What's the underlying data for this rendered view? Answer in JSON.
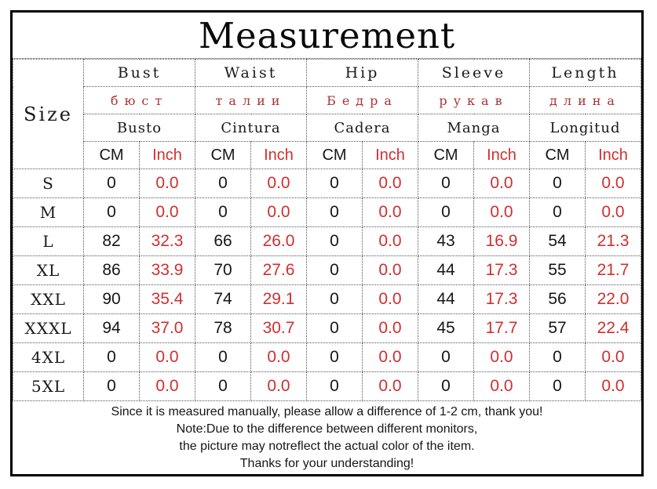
{
  "title": "Measurement",
  "table": {
    "size_header": "Size",
    "units": {
      "cm": "CM",
      "inch": "Inch"
    },
    "columns": [
      {
        "en": "Bust",
        "ru": "бюст",
        "es": "Busto"
      },
      {
        "en": "Waist",
        "ru": "талии",
        "es": "Cintura"
      },
      {
        "en": "Hip",
        "ru": "Бедра",
        "es": "Cadera"
      },
      {
        "en": "Sleeve",
        "ru": "рукав",
        "es": "Manga"
      },
      {
        "en": "Length",
        "ru": "длина",
        "es": "Longitud"
      }
    ],
    "rows": [
      {
        "size": "S",
        "values": [
          "0",
          "0.0",
          "0",
          "0.0",
          "0",
          "0.0",
          "0",
          "0.0",
          "0",
          "0.0"
        ]
      },
      {
        "size": "M",
        "values": [
          "0",
          "0.0",
          "0",
          "0.0",
          "0",
          "0.0",
          "0",
          "0.0",
          "0",
          "0.0"
        ]
      },
      {
        "size": "L",
        "values": [
          "82",
          "32.3",
          "66",
          "26.0",
          "0",
          "0.0",
          "43",
          "16.9",
          "54",
          "21.3"
        ]
      },
      {
        "size": "XL",
        "values": [
          "86",
          "33.9",
          "70",
          "27.6",
          "0",
          "0.0",
          "44",
          "17.3",
          "55",
          "21.7"
        ]
      },
      {
        "size": "XXL",
        "values": [
          "90",
          "35.4",
          "74",
          "29.1",
          "0",
          "0.0",
          "44",
          "17.3",
          "56",
          "22.0"
        ]
      },
      {
        "size": "XXXL",
        "values": [
          "94",
          "37.0",
          "78",
          "30.7",
          "0",
          "0.0",
          "45",
          "17.7",
          "57",
          "22.4"
        ]
      },
      {
        "size": "4XL",
        "values": [
          "0",
          "0.0",
          "0",
          "0.0",
          "0",
          "0.0",
          "0",
          "0.0",
          "0",
          "0.0"
        ]
      },
      {
        "size": "5XL",
        "values": [
          "0",
          "0.0",
          "0",
          "0.0",
          "0",
          "0.0",
          "0",
          "0.0",
          "0",
          "0.0"
        ]
      }
    ]
  },
  "notes": [
    "Since it is measured manually, please allow a difference of 1-2 cm, thank you!",
    "Note:Due to the difference between different monitors,",
    "the picture may notreflect the actual color of the item.",
    "Thanks for your understanding!"
  ],
  "colors": {
    "number_red": "#d02f2f",
    "russian_red": "#a93434",
    "ink": "#161616",
    "border_dotted": "#555555",
    "frame": "#000000"
  }
}
